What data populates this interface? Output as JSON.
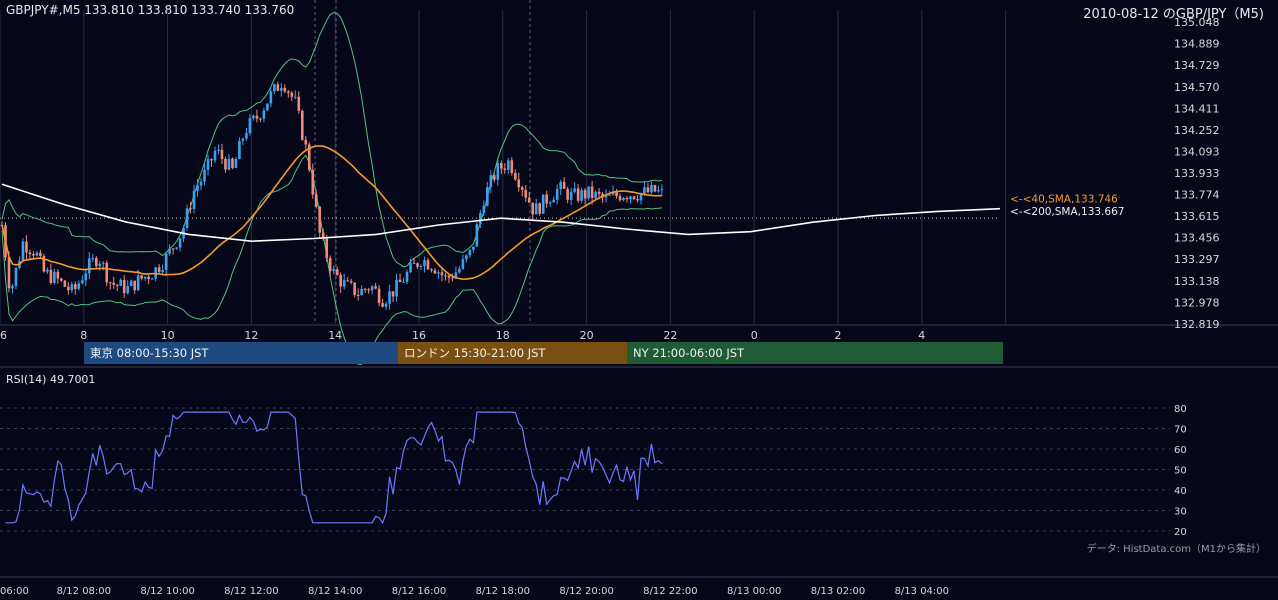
{
  "header": {
    "ohlc_text": "GBPJPY#,M5 133.810 133.810 133.740 133.760",
    "chart_title": "2010-08-12 のGBP/JPY（M5)"
  },
  "colors": {
    "background": "#07071a",
    "price_up": "#3aa0f0",
    "price_down": "#f08a7a",
    "sma40": "#f59a2a",
    "sma200": "#ffffff",
    "bollinger": "#55c27a",
    "rsi_line": "#6f78ff",
    "tokyo": "#1f4a7f",
    "london": "#7a5012",
    "ny": "#1f5c35"
  },
  "price_axis": {
    "ticks": [
      "135.048",
      "134.889",
      "134.729",
      "134.570",
      "134.411",
      "134.252",
      "134.093",
      "133.933",
      "133.774",
      "133.615",
      "133.456",
      "133.297",
      "133.138",
      "132.978",
      "132.819"
    ],
    "min": 132.819,
    "max": 135.048
  },
  "time_axis_hours": [
    "6",
    "8",
    "10",
    "12",
    "14",
    "16",
    "18",
    "20",
    "22",
    "0",
    "2",
    "4"
  ],
  "indicators": {
    "sma40_label": "<-<40,SMA,133.746",
    "sma200_label": "<-<200,SMA,133.667"
  },
  "sessions": [
    {
      "label": "東京 08:00-15:30 JST",
      "color": "#1f4a7f"
    },
    {
      "label": "ロンドン 15:30-21:00 JST",
      "color": "#7a5012"
    },
    {
      "label": "NY 21:00-06:00 JST",
      "color": "#1f5c35"
    }
  ],
  "rsi": {
    "label": "RSI(14) 49.7001",
    "ticks": [
      "80",
      "70",
      "60",
      "50",
      "40",
      "30",
      "20"
    ]
  },
  "bottom_axis": [
    "06:00",
    "8/12 08:00",
    "8/12 10:00",
    "8/12 12:00",
    "8/12 14:00",
    "8/12 16:00",
    "8/12 18:00",
    "8/12 20:00",
    "8/12 22:00",
    "8/13 00:00",
    "8/13 02:00",
    "8/13 04:00"
  ],
  "credit": "データ: HistData.com（M1から集計）",
  "chart_data": {
    "type": "line",
    "symbol": "GBPJPY",
    "timeframe": "M5",
    "ylim": [
      132.819,
      135.048
    ],
    "series": [
      {
        "name": "40,SMA",
        "values": [
          133.55,
          133.45,
          133.36,
          133.3,
          133.24,
          133.24,
          133.27,
          133.4,
          133.6,
          133.9,
          134.2,
          134.0,
          133.62,
          133.35,
          133.22,
          133.2,
          133.3,
          133.55,
          133.7,
          133.75,
          133.75
        ]
      },
      {
        "name": "200,SMA",
        "values": [
          133.85,
          133.7,
          133.57,
          133.48,
          133.43,
          133.45,
          133.48,
          133.55,
          133.6,
          133.57,
          133.52,
          133.48,
          133.5,
          133.57,
          133.62,
          133.65,
          133.67
        ]
      }
    ],
    "rsi": {
      "ylim": [
        20,
        80
      ],
      "last": 49.7001
    }
  }
}
